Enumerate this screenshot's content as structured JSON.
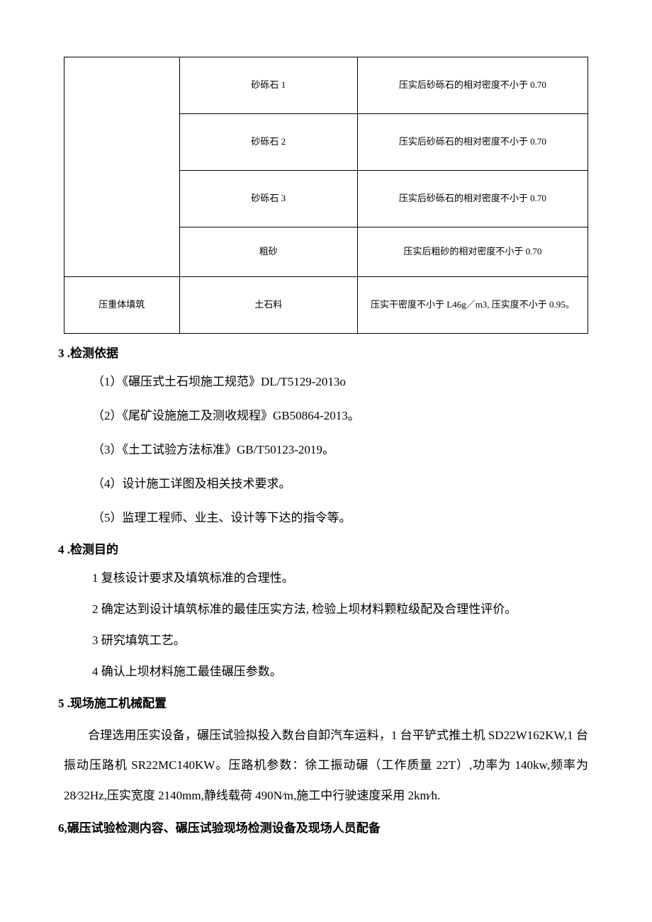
{
  "table": {
    "rows": [
      {
        "col1": "",
        "col2": "砂砾石 1",
        "col3": "压实后砂砾石的相对密度不小于 0.70"
      },
      {
        "col1": "",
        "col2": "砂砾石 2",
        "col3": "压实后砂砾石的相对密度不小于 0.70"
      },
      {
        "col1": "",
        "col2": "砂砾石 3",
        "col3": "压实后砂砾石的相对密度不小于 0.70"
      },
      {
        "col1": "",
        "col2": "粗砂",
        "col3": "压实后粗砂的相对密度不小于 0.70"
      },
      {
        "col1": "压重体填筑",
        "col2": "土石料",
        "col3": "压实干密度不小于 L46g／m3, 压实度不小于 0.95。"
      }
    ]
  },
  "section3": {
    "heading": "3 .检测依据",
    "items": [
      "（1）《碾压式土石坝施工规范》DL/T5129-2013o",
      "（2）《尾矿设施施工及测收规程》GB50864-2013。",
      "（3）《土工试验方法标准》GB/T50123-2019。",
      "（4）设计施工详图及相关技术要求。",
      "（5）监理工程师、业主、设计等下达的指令等。"
    ]
  },
  "section4": {
    "heading": "4 .检测目的",
    "items": [
      "1 复核设计要求及填筑标准的合理性。",
      "2 确定达到设计填筑标准的最佳压实方法, 检验上坝材料颗粒级配及合理性评价。",
      "3 研究填筑工艺。",
      "4 确认上坝材料施工最佳碾压参数。"
    ]
  },
  "section5": {
    "heading": "5 .现场施工机械配置",
    "paragraph": "合理选用压实设备，碾压试验拟投入数台自卸汽车运料，1 台平铲式推土机 SD22W162KW,1 台振动压路机 SR22MC140KW。压路机参数：徐工振动碾（工作质量 22T）,功率为 140kw,频率为 28⁄32Hz,压实宽度 2140mm,静线载荷 490N⁄m,施工中行驶速度采用 2km⁄h."
  },
  "section6": {
    "heading": "6,碾压试验检测内容、碾压试验现场检测设备及现场人员配备"
  }
}
